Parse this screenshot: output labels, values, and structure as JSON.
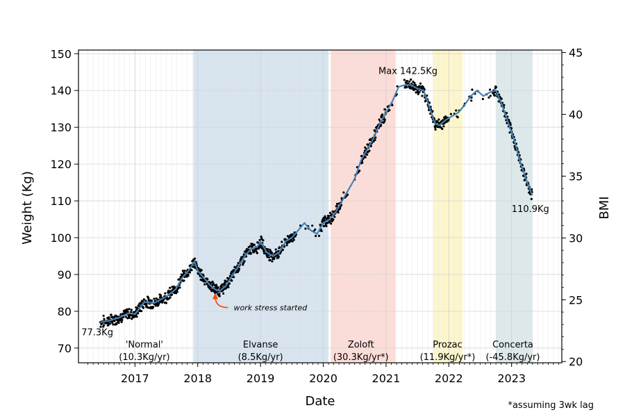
{
  "chart_data": {
    "type": "line",
    "title": "",
    "xlabel": "Date",
    "ylabel": "Weight (Kg)",
    "y2label": "BMI",
    "footnote": "*assuming 3wk lag",
    "xlim": [
      2016.1,
      2023.8
    ],
    "ylim": [
      66,
      151
    ],
    "y2lim": [
      19.9,
      45.2
    ],
    "x_ticks": [
      2017,
      2018,
      2019,
      2020,
      2021,
      2022,
      2023
    ],
    "y_ticks": [
      70,
      80,
      90,
      100,
      110,
      120,
      130,
      140,
      150
    ],
    "y2_ticks": [
      20,
      25,
      30,
      35,
      40,
      45
    ],
    "grid": true,
    "series": [
      {
        "values_x": [
          2016.45,
          2016.6,
          2016.75,
          2016.9,
          2017.0,
          2017.08,
          2017.15,
          2017.3,
          2017.5,
          2017.65,
          2017.75,
          2017.85,
          2017.95,
          2018.0,
          2018.1,
          2018.2,
          2018.27,
          2018.35,
          2018.45,
          2018.6,
          2018.75,
          2018.85,
          2018.95,
          2019.0,
          2019.1,
          2019.2,
          2019.3,
          2019.4,
          2019.5,
          2019.7,
          2019.8,
          2019.9,
          2020.0,
          2020.1,
          2020.2,
          2020.3,
          2020.4,
          2020.5,
          2020.6,
          2020.7,
          2020.8,
          2020.9,
          2021.0,
          2021.1,
          2021.2,
          2021.3,
          2021.4,
          2021.5,
          2021.6,
          2021.7,
          2021.78,
          2021.85,
          2021.95,
          2022.05,
          2022.15,
          2022.25,
          2022.35,
          2022.45,
          2022.55,
          2022.65,
          2022.75,
          2022.85,
          2022.95,
          2023.05,
          2023.15,
          2023.25,
          2023.33
        ],
        "values_y": [
          77,
          77.5,
          78.3,
          79.5,
          79.2,
          81,
          82.5,
          82.2,
          84,
          86,
          89,
          91,
          93.5,
          91,
          89,
          87,
          86,
          85.5,
          87,
          91,
          95,
          97,
          97.5,
          99,
          96,
          95,
          96,
          99,
          100,
          104,
          102,
          101,
          104,
          105,
          107,
          110,
          113,
          116,
          121,
          124,
          127,
          131,
          134,
          137,
          141,
          141.5,
          141.5,
          140.5,
          140,
          135,
          131,
          130.5,
          132,
          133,
          134,
          136,
          138.5,
          140,
          138.5,
          139.5,
          140,
          136,
          131,
          126,
          120,
          115,
          111.5
        ]
      }
    ],
    "shaded_periods": [
      {
        "label": "'Normal'",
        "rate": "(10.3Kg/yr)",
        "start": 2016.1,
        "end": 2017.93,
        "color": "#ffffff",
        "label_x": 2017.15
      },
      {
        "label": "Elvanse",
        "rate": "(8.5Kg/yr)",
        "start": 2017.93,
        "end": 2020.08,
        "color": "#d7e4ef",
        "label_x": 2019.0
      },
      {
        "label": "Zoloft",
        "rate": "(30.3Kg/yr*)",
        "start": 2020.12,
        "end": 2021.15,
        "color": "#fcdcd7",
        "label_x": 2020.6
      },
      {
        "label": "Prozac",
        "rate": "(11.9Kg/yr*)",
        "start": 2021.75,
        "end": 2022.22,
        "color": "#fdf6cc",
        "label_x": 2021.98
      },
      {
        "label": "Concerta",
        "rate": "(-45.8Kg/yr)",
        "start": 2022.75,
        "end": 2023.33,
        "color": "#dce8ea",
        "label_x": 2023.02
      }
    ],
    "annotations": [
      {
        "text": "77.3Kg",
        "x": 2016.4,
        "y": 73.5
      },
      {
        "text": "Max 142.5Kg",
        "x": 2021.35,
        "y": 144.5
      },
      {
        "text": "110.9Kg",
        "x": 2023.3,
        "y": 107
      },
      {
        "text": "work stress started",
        "x": 2018.55,
        "y": 81,
        "arrow_to": [
          2018.28,
          85
        ]
      }
    ]
  }
}
